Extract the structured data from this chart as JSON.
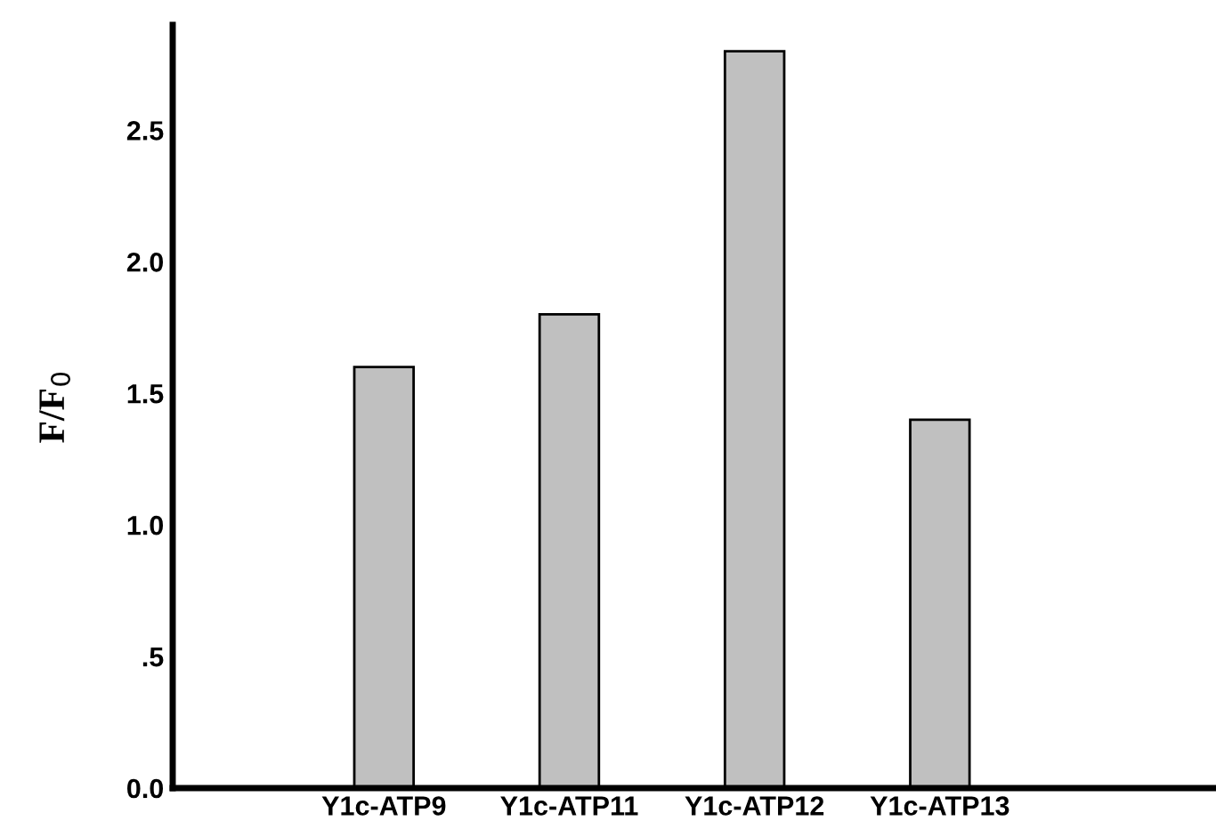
{
  "chart_data": {
    "type": "bar",
    "ylabel": "F/F$_{0}$",
    "categories": [
      "Y1c-ATP9",
      "Y1c-ATP11",
      "Y1c-ATP12",
      "Y1c-ATP13"
    ],
    "values": [
      1.6,
      1.8,
      2.8,
      1.4
    ],
    "color": "#c0c0c0",
    "ylim": [
      0,
      2.9
    ],
    "yticks": [
      {
        "value": 0,
        "label": "0.0"
      },
      {
        "value": 0.5,
        "label": ".5"
      },
      {
        "value": 1,
        "label": "1.0"
      },
      {
        "value": 1.5,
        "label": "1.5"
      },
      {
        "value": 2,
        "label": "2.0"
      },
      {
        "value": 2.5,
        "label": "2.5"
      }
    ],
    "grid": false
  }
}
